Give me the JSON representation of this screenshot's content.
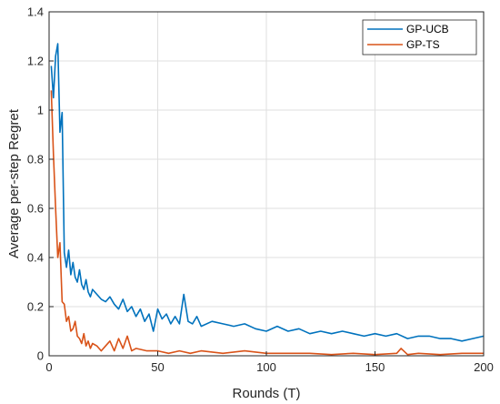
{
  "chart_data": {
    "type": "line",
    "title": "",
    "xlabel": "Rounds (T)",
    "ylabel": "Average per-step Regret",
    "xlim": [
      0,
      200
    ],
    "ylim": [
      0,
      1.4
    ],
    "xticks": [
      0,
      50,
      100,
      150,
      200
    ],
    "yticks": [
      0,
      0.2,
      0.4,
      0.6,
      0.8,
      1,
      1.2,
      1.4
    ],
    "xtick_labels": [
      "0",
      "50",
      "100",
      "150",
      "200"
    ],
    "ytick_labels": [
      "0",
      "0.2",
      "0.4",
      "0.6",
      "0.8",
      "1",
      "1.2",
      "1.4"
    ],
    "grid": true,
    "legend_position": "top-right",
    "series": [
      {
        "name": "GP-UCB",
        "color": "#0072BD",
        "x": [
          1,
          2,
          3,
          4,
          5,
          6,
          7,
          8,
          9,
          10,
          11,
          12,
          13,
          14,
          15,
          16,
          17,
          18,
          19,
          20,
          22,
          24,
          26,
          28,
          30,
          32,
          34,
          36,
          38,
          40,
          42,
          44,
          46,
          48,
          50,
          52,
          54,
          56,
          58,
          60,
          62,
          64,
          66,
          68,
          70,
          75,
          80,
          85,
          90,
          95,
          100,
          105,
          110,
          115,
          120,
          125,
          130,
          135,
          140,
          145,
          150,
          155,
          160,
          165,
          170,
          175,
          180,
          185,
          190,
          195,
          200
        ],
        "y": [
          1.18,
          1.05,
          1.22,
          1.27,
          0.91,
          0.99,
          0.42,
          0.36,
          0.43,
          0.33,
          0.38,
          0.32,
          0.3,
          0.35,
          0.29,
          0.27,
          0.31,
          0.26,
          0.24,
          0.27,
          0.25,
          0.23,
          0.22,
          0.24,
          0.21,
          0.19,
          0.23,
          0.18,
          0.2,
          0.16,
          0.19,
          0.14,
          0.17,
          0.1,
          0.19,
          0.15,
          0.17,
          0.13,
          0.16,
          0.13,
          0.25,
          0.14,
          0.13,
          0.16,
          0.12,
          0.14,
          0.13,
          0.12,
          0.13,
          0.11,
          0.1,
          0.12,
          0.1,
          0.11,
          0.09,
          0.1,
          0.09,
          0.1,
          0.09,
          0.08,
          0.09,
          0.08,
          0.09,
          0.07,
          0.08,
          0.08,
          0.07,
          0.07,
          0.06,
          0.07,
          0.08
        ]
      },
      {
        "name": "GP-TS",
        "color": "#D95319",
        "x": [
          1,
          2,
          3,
          4,
          5,
          6,
          7,
          8,
          9,
          10,
          11,
          12,
          13,
          14,
          15,
          16,
          17,
          18,
          19,
          20,
          22,
          24,
          26,
          28,
          30,
          32,
          34,
          36,
          38,
          40,
          45,
          50,
          55,
          60,
          65,
          70,
          80,
          90,
          100,
          110,
          120,
          130,
          140,
          150,
          160,
          162,
          165,
          170,
          180,
          190,
          200
        ],
        "y": [
          1.08,
          0.82,
          0.6,
          0.4,
          0.46,
          0.22,
          0.21,
          0.14,
          0.16,
          0.1,
          0.11,
          0.14,
          0.08,
          0.07,
          0.05,
          0.09,
          0.04,
          0.06,
          0.03,
          0.05,
          0.04,
          0.02,
          0.04,
          0.06,
          0.02,
          0.07,
          0.03,
          0.08,
          0.02,
          0.03,
          0.02,
          0.02,
          0.01,
          0.02,
          0.01,
          0.02,
          0.01,
          0.02,
          0.01,
          0.01,
          0.01,
          0.005,
          0.01,
          0.005,
          0.01,
          0.03,
          0.005,
          0.01,
          0.005,
          0.01,
          0.01
        ]
      }
    ]
  }
}
